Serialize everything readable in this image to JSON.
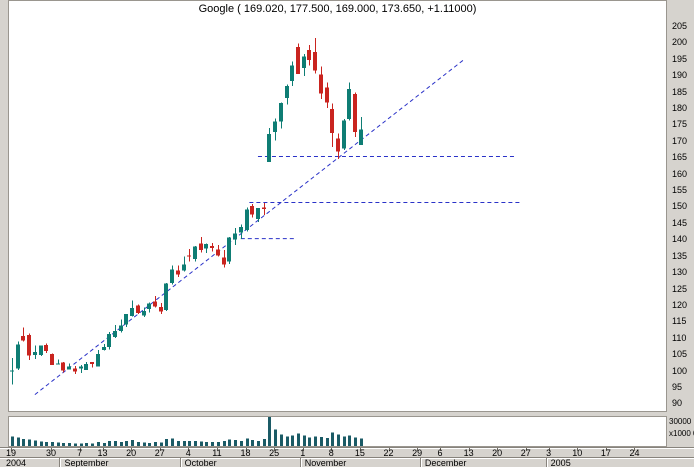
{
  "chart_data": {
    "type": "candlestick",
    "symbol": "Google",
    "title": "Google ( 169.020, 177.500, 169.000, 173.650, +1.11000)",
    "last_quote": {
      "open": "169.020",
      "high": "177.500",
      "low": "169.000",
      "close": "173.650",
      "change": "+1.11000"
    },
    "ylim": [
      88,
      208
    ],
    "price_axis": {
      "tick_values": [
        205,
        200,
        195,
        190,
        185,
        180,
        175,
        170,
        165,
        160,
        155,
        150,
        145,
        140,
        135,
        130,
        125,
        120,
        115,
        110,
        105,
        100,
        95,
        90
      ]
    },
    "volume_axis": {
      "labels": [
        "30000",
        "x1000 00"
      ],
      "max_x1000": 30000
    },
    "x_axis": {
      "day_ticks": [
        {
          "label": "19",
          "day": 0
        },
        {
          "label": "30",
          "day": 7
        },
        {
          "label": "7",
          "day": 12
        },
        {
          "label": "13",
          "day": 16
        },
        {
          "label": "20",
          "day": 21
        },
        {
          "label": "27",
          "day": 26
        },
        {
          "label": "4",
          "day": 31
        },
        {
          "label": "11",
          "day": 36
        },
        {
          "label": "18",
          "day": 41
        },
        {
          "label": "25",
          "day": 46
        },
        {
          "label": "1",
          "day": 51
        },
        {
          "label": "8",
          "day": 56
        },
        {
          "label": "15",
          "day": 61
        },
        {
          "label": "22",
          "day": 66
        },
        {
          "label": "29",
          "day": 71
        },
        {
          "label": "6",
          "day": 75
        },
        {
          "label": "13",
          "day": 80
        },
        {
          "label": "20",
          "day": 85
        },
        {
          "label": "27",
          "day": 90
        },
        {
          "label": "3",
          "day": 94
        },
        {
          "label": "10",
          "day": 99
        },
        {
          "label": "17",
          "day": 104
        },
        {
          "label": "24",
          "day": 109
        }
      ],
      "months": [
        {
          "label": "2004",
          "day": null
        },
        {
          "label": "September",
          "day": 9
        },
        {
          "label": "October",
          "day": 30
        },
        {
          "label": "November",
          "day": 51
        },
        {
          "label": "December",
          "day": 72
        },
        {
          "label": "2005",
          "day": 94
        }
      ]
    },
    "candles_format": [
      "open",
      "high",
      "low",
      "close",
      "volume_x1000"
    ],
    "candles": [
      [
        100.0,
        104.1,
        96.0,
        100.3,
        10000
      ],
      [
        101.0,
        109.1,
        100.5,
        108.3,
        9000
      ],
      [
        110.8,
        113.5,
        109.1,
        109.4,
        7500
      ],
      [
        111.2,
        111.6,
        103.6,
        104.9,
        6500
      ],
      [
        105.0,
        108.0,
        103.9,
        106.0,
        5500
      ],
      [
        105.0,
        108.0,
        104.7,
        107.9,
        4500
      ],
      [
        108.1,
        108.6,
        105.7,
        106.2,
        4000
      ],
      [
        105.3,
        105.5,
        102.0,
        102.0,
        4000
      ],
      [
        102.3,
        103.7,
        102.2,
        102.4,
        3500
      ],
      [
        102.7,
        103.0,
        99.7,
        100.3,
        3000
      ],
      [
        100.7,
        102.4,
        100.7,
        101.5,
        3000
      ],
      [
        101.0,
        101.7,
        99.3,
        100.0,
        2800
      ],
      [
        101.0,
        102.0,
        99.6,
        101.6,
        2800
      ],
      [
        100.5,
        103.0,
        100.5,
        102.3,
        3000
      ],
      [
        102.9,
        102.9,
        101.2,
        102.3,
        2500
      ],
      [
        101.6,
        106.6,
        101.5,
        105.3,
        4000
      ],
      [
        106.6,
        108.4,
        106.5,
        107.5,
        3200
      ],
      [
        107.5,
        112.0,
        106.8,
        111.5,
        5000
      ],
      [
        110.6,
        114.2,
        110.2,
        112.3,
        5000
      ],
      [
        112.3,
        115.8,
        111.9,
        114.0,
        4200
      ],
      [
        114.4,
        117.5,
        113.6,
        117.5,
        5000
      ],
      [
        117.0,
        121.6,
        116.8,
        119.4,
        6000
      ],
      [
        120.1,
        120.4,
        117.5,
        117.8,
        4000
      ],
      [
        117.1,
        119.5,
        116.6,
        118.4,
        3500
      ],
      [
        119.0,
        121.0,
        118.0,
        120.8,
        3200
      ],
      [
        121.4,
        123.0,
        119.5,
        119.8,
        4000
      ],
      [
        119.6,
        120.9,
        117.6,
        118.3,
        3500
      ],
      [
        118.8,
        127.0,
        118.5,
        126.9,
        7000
      ],
      [
        127.0,
        132.3,
        126.5,
        131.1,
        8000
      ],
      [
        130.8,
        132.3,
        128.8,
        129.6,
        5000
      ],
      [
        130.8,
        135.0,
        130.5,
        132.6,
        5200
      ],
      [
        135.3,
        137.4,
        133.5,
        135.1,
        5000
      ],
      [
        134.3,
        138.2,
        133.6,
        138.1,
        5200
      ],
      [
        139.0,
        141.0,
        136.3,
        137.1,
        4800
      ],
      [
        137.5,
        139.0,
        136.1,
        138.8,
        4200
      ],
      [
        138.3,
        139.2,
        136.6,
        137.7,
        4000
      ],
      [
        137.2,
        138.5,
        135.1,
        135.3,
        4000
      ],
      [
        134.8,
        137.0,
        131.7,
        132.6,
        5000
      ],
      [
        133.5,
        141.0,
        132.8,
        140.9,
        6500
      ],
      [
        140.3,
        143.8,
        138.6,
        142.0,
        6000
      ],
      [
        142.3,
        144.8,
        140.4,
        144.1,
        5200
      ],
      [
        143.2,
        150.0,
        142.7,
        149.4,
        8000
      ],
      [
        150.5,
        151.0,
        147.0,
        147.9,
        6000
      ],
      [
        146.5,
        149.9,
        145.6,
        149.8,
        5000
      ],
      [
        150.0,
        151.3,
        147.7,
        149.5,
        7000
      ],
      [
        163.9,
        174.2,
        163.8,
        172.4,
        30000
      ],
      [
        172.9,
        177.1,
        170.4,
        176.1,
        17000
      ],
      [
        176.2,
        182.0,
        174.0,
        181.8,
        12000
      ],
      [
        183.3,
        187.5,
        181.3,
        187.0,
        10000
      ],
      [
        188.5,
        194.4,
        187.0,
        193.3,
        11000
      ],
      [
        198.9,
        200.0,
        190.6,
        190.6,
        13000
      ],
      [
        192.5,
        196.8,
        190.0,
        196.0,
        11000
      ],
      [
        198.0,
        199.5,
        193.3,
        194.9,
        9000
      ],
      [
        197.3,
        201.6,
        190.8,
        191.7,
        10000
      ],
      [
        190.5,
        193.0,
        183.1,
        184.7,
        9500
      ],
      [
        186.6,
        188.0,
        180.3,
        182.0,
        8500
      ],
      [
        180.0,
        181.6,
        168.4,
        172.6,
        14000
      ],
      [
        171.0,
        172.5,
        164.8,
        167.0,
        12000
      ],
      [
        167.9,
        177.0,
        167.5,
        176.5,
        10000
      ],
      [
        177.0,
        188.0,
        176.5,
        186.0,
        11000
      ],
      [
        184.5,
        185.0,
        171.5,
        173.0,
        9000
      ],
      [
        169.0,
        177.5,
        169.0,
        173.7,
        8000
      ]
    ],
    "trendlines": [
      {
        "name": "ascending-support",
        "d1": 4,
        "p1": 93.0,
        "d2": 79,
        "p2": 195.0
      },
      {
        "name": "horizontal-165",
        "d1": 43,
        "p1": 165.5,
        "d2": 88,
        "p2": 165.5
      },
      {
        "name": "horizontal-151",
        "d1": 41.5,
        "p1": 151.5,
        "d2": 89,
        "p2": 151.5
      },
      {
        "name": "horizontal-140",
        "d1": 40,
        "p1": 140.5,
        "d2": 49.5,
        "p2": 140.5
      }
    ],
    "colors": {
      "up": "#0e7d74",
      "down": "#c9241f",
      "volume": "#1b5b66",
      "trendline": "#2a32c8",
      "background": "#ffffff",
      "frame": "#d6d3ce"
    }
  }
}
